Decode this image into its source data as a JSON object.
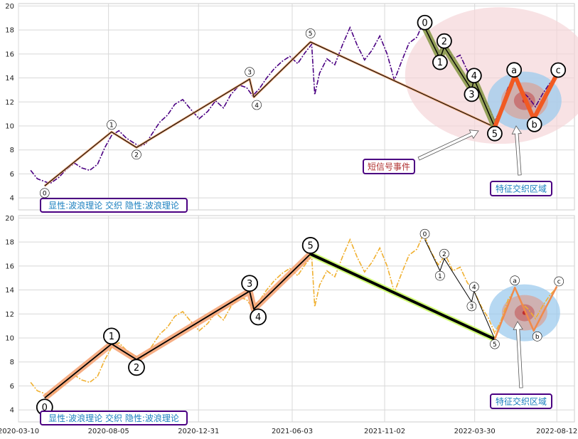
{
  "chart_data": {
    "type": "line",
    "x_ticks": [
      "2020-03-10",
      "2020-08-05",
      "2020-12-31",
      "2021-06-03",
      "2021-11-02",
      "2022-03-30",
      "2022-08-12"
    ],
    "x_range": [
      "2020-03-10",
      "2022-09-10"
    ],
    "ylim": [
      3,
      20.2
    ],
    "y_ticks": [
      4,
      6,
      8,
      10,
      12,
      14,
      16,
      18,
      20
    ],
    "grid": true,
    "price_series": [
      {
        "x": "2020-03-30",
        "y": 6.3
      },
      {
        "x": "2020-04-10",
        "y": 5.6
      },
      {
        "x": "2020-04-20",
        "y": 5.4
      },
      {
        "x": "2020-05-01",
        "y": 5.2
      },
      {
        "x": "2020-05-15",
        "y": 5.7
      },
      {
        "x": "2020-05-28",
        "y": 6.4
      },
      {
        "x": "2020-06-10",
        "y": 6.9
      },
      {
        "x": "2020-06-22",
        "y": 6.5
      },
      {
        "x": "2020-07-05",
        "y": 6.3
      },
      {
        "x": "2020-07-18",
        "y": 6.8
      },
      {
        "x": "2020-07-30",
        "y": 8.2
      },
      {
        "x": "2020-08-10",
        "y": 9.2
      },
      {
        "x": "2020-08-22",
        "y": 9.6
      },
      {
        "x": "2020-09-03",
        "y": 9.0
      },
      {
        "x": "2020-09-15",
        "y": 8.6
      },
      {
        "x": "2020-09-25",
        "y": 8.3
      },
      {
        "x": "2020-10-05",
        "y": 8.5
      },
      {
        "x": "2020-10-15",
        "y": 9.3
      },
      {
        "x": "2020-10-28",
        "y": 10.3
      },
      {
        "x": "2020-11-10",
        "y": 10.9
      },
      {
        "x": "2020-11-22",
        "y": 11.8
      },
      {
        "x": "2020-12-05",
        "y": 12.2
      },
      {
        "x": "2020-12-18",
        "y": 11.4
      },
      {
        "x": "2021-01-01",
        "y": 10.6
      },
      {
        "x": "2021-01-15",
        "y": 11.2
      },
      {
        "x": "2021-01-28",
        "y": 12.1
      },
      {
        "x": "2021-02-10",
        "y": 11.5
      },
      {
        "x": "2021-02-22",
        "y": 12.6
      },
      {
        "x": "2021-03-08",
        "y": 13.4
      },
      {
        "x": "2021-03-20",
        "y": 13.2
      },
      {
        "x": "2021-03-30",
        "y": 12.5
      },
      {
        "x": "2021-04-10",
        "y": 13.1
      },
      {
        "x": "2021-04-22",
        "y": 14.0
      },
      {
        "x": "2021-05-05",
        "y": 14.8
      },
      {
        "x": "2021-05-18",
        "y": 15.4
      },
      {
        "x": "2021-05-30",
        "y": 15.8
      },
      {
        "x": "2021-06-12",
        "y": 15.2
      },
      {
        "x": "2021-06-24",
        "y": 16.1
      },
      {
        "x": "2021-07-05",
        "y": 16.8
      },
      {
        "x": "2021-07-10",
        "y": 12.6
      },
      {
        "x": "2021-07-18",
        "y": 14.4
      },
      {
        "x": "2021-07-30",
        "y": 15.6
      },
      {
        "x": "2021-08-12",
        "y": 15.1
      },
      {
        "x": "2021-08-25",
        "y": 16.8
      },
      {
        "x": "2021-09-06",
        "y": 18.2
      },
      {
        "x": "2021-09-18",
        "y": 16.7
      },
      {
        "x": "2021-09-30",
        "y": 15.5
      },
      {
        "x": "2021-10-12",
        "y": 16.3
      },
      {
        "x": "2021-10-25",
        "y": 17.5
      },
      {
        "x": "2021-11-06",
        "y": 16.0
      },
      {
        "x": "2021-11-18",
        "y": 13.8
      },
      {
        "x": "2021-11-30",
        "y": 15.4
      },
      {
        "x": "2021-12-12",
        "y": 16.9
      },
      {
        "x": "2021-12-25",
        "y": 17.4
      },
      {
        "x": "2022-01-05",
        "y": 18.7
      },
      {
        "x": "2022-01-17",
        "y": 17.2
      },
      {
        "x": "2022-01-29",
        "y": 16.1
      },
      {
        "x": "2022-02-10",
        "y": 16.9
      },
      {
        "x": "2022-02-22",
        "y": 15.6
      },
      {
        "x": "2022-03-06",
        "y": 15.9
      },
      {
        "x": "2022-03-18",
        "y": 14.6
      },
      {
        "x": "2022-03-30",
        "y": 13.8
      },
      {
        "x": "2022-04-10",
        "y": 12.6
      },
      {
        "x": "2022-04-22",
        "y": 11.6
      },
      {
        "x": "2022-05-02",
        "y": 10.4
      },
      {
        "x": "2022-05-12",
        "y": 11.4
      },
      {
        "x": "2022-05-24",
        "y": 13.2
      },
      {
        "x": "2022-06-05",
        "y": 14.1
      },
      {
        "x": "2022-06-15",
        "y": 12.9
      },
      {
        "x": "2022-06-26",
        "y": 12.4
      },
      {
        "x": "2022-07-08",
        "y": 11.6
      },
      {
        "x": "2022-07-20",
        "y": 12.7
      },
      {
        "x": "2022-08-01",
        "y": 13.6
      },
      {
        "x": "2022-08-12",
        "y": 14.2
      }
    ],
    "main_wave": [
      {
        "label": "0",
        "x": "2020-04-22",
        "y": 5.0
      },
      {
        "label": "1",
        "x": "2020-08-10",
        "y": 9.5
      },
      {
        "label": "2",
        "x": "2020-09-20",
        "y": 8.2
      },
      {
        "label": "3",
        "x": "2021-03-25",
        "y": 13.9
      },
      {
        "label": "4",
        "x": "2021-04-01",
        "y": 12.4
      },
      {
        "label": "5",
        "x": "2021-07-03",
        "y": 17.0
      },
      {
        "label": "5",
        "x": "2022-05-02",
        "y": 9.9
      }
    ],
    "sub_wave": [
      {
        "label": "0",
        "x": "2022-01-07",
        "y": 18.2
      },
      {
        "label": "1",
        "x": "2022-02-01",
        "y": 15.6
      },
      {
        "label": "2",
        "x": "2022-02-08",
        "y": 16.6
      },
      {
        "label": "3",
        "x": "2022-03-25",
        "y": 13.0
      },
      {
        "label": "4",
        "x": "2022-03-29",
        "y": 13.9
      },
      {
        "label": "5",
        "x": "2022-05-02",
        "y": 9.9
      }
    ],
    "abc_wave": [
      {
        "label": "5",
        "x": "2022-05-02",
        "y": 9.9
      },
      {
        "label": "a",
        "x": "2022-06-04",
        "y": 14.2
      },
      {
        "label": "b",
        "x": "2022-07-05",
        "y": 10.6
      },
      {
        "label": "c",
        "x": "2022-08-12",
        "y": 14.3
      }
    ],
    "feature_center": {
      "x": "2022-06-20",
      "y": 12.1
    },
    "event_center": {
      "x": "2022-05-10",
      "y": 14.2
    },
    "colors": {
      "top_series": "#4b0082",
      "bottom_series": "#f0b030",
      "abc_top": "#f15a22",
      "abc_bottom": "#f08a4b",
      "box_border": "#4b0082",
      "box_text": "#1a7fbf",
      "event_text": "#b03030",
      "event_fill": "#f5d5d8",
      "feature_outer": "#9ecbee",
      "feature_mid": "#d6a8a0",
      "feature_inner": "#c46060",
      "feature_dot": "#c03030",
      "band_top": "#8a9a4a",
      "band_bottom": "#f4a070",
      "down_band_bottom": "#ccff66"
    },
    "annotations": {
      "top_text_box": "显性:波浪理论 交织 隐性:波浪理论",
      "bottom_text_box": "显性:波浪理论 交织 隐性:波浪理论",
      "short_signal": "短信号事件",
      "feature_top": "特征交织区域",
      "feature_bottom": "特征交织区域"
    }
  }
}
